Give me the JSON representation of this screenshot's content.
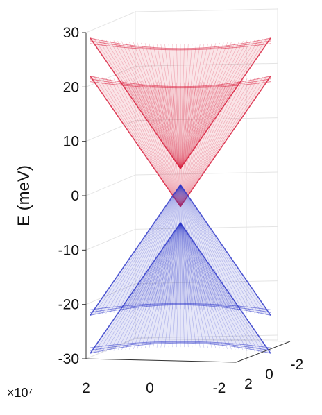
{
  "chart_data": {
    "type": "surface",
    "ylabel": "E (meV)",
    "zlim": [
      -30,
      30
    ],
    "z_ticks": [
      30,
      20,
      10,
      0,
      -10,
      -20,
      -30
    ],
    "kx_ticks": [
      2,
      0,
      -2
    ],
    "ky_ticks": [
      2,
      0,
      -2
    ],
    "axis_multiplier": "×10⁷",
    "grid": true,
    "series": [
      {
        "band": "conduction",
        "color": "#d81e3c",
        "description": "upper pair of red translucent cones",
        "apex_energies": [
          5,
          -2
        ]
      },
      {
        "band": "valence",
        "color": "#2b35c8",
        "description": "lower pair of blue translucent cones",
        "apex_energies": [
          2,
          -5
        ]
      }
    ]
  }
}
